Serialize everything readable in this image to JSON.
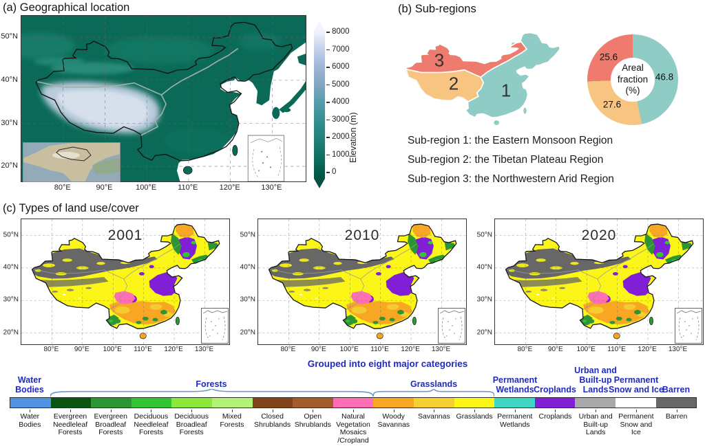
{
  "colors": {
    "header_blue": "#1f2bbd",
    "brace_blue": "#6f97c9",
    "map_outline": "#111111",
    "subregion_line_gray": "#9aa39d"
  },
  "panel_a": {
    "title": "(a) Geographical location",
    "colorbar_label": "Elevation (m)",
    "colorbar_ticks": [
      "8000",
      "7000",
      "6000",
      "5000",
      "4000",
      "3000",
      "2000",
      "1000",
      "0"
    ]
  },
  "axes": {
    "lat_labels": [
      "50°N",
      "40°N",
      "30°N",
      "20°N"
    ],
    "lon_labels": [
      "80°E",
      "90°E",
      "100°E",
      "110°E",
      "120°E",
      "130°E"
    ]
  },
  "panel_b": {
    "title": "(b) Sub-regions",
    "regions": [
      {
        "num": "1",
        "name": "Eastern Monsoon Region",
        "color": "#8fccc5"
      },
      {
        "num": "2",
        "name": "Tibetan Plateau Region",
        "color": "#f8c481"
      },
      {
        "num": "3",
        "name": "Northwestern Arid Region",
        "color": "#ee7b6e"
      }
    ],
    "donut": {
      "center_label": "Areal\nfraction\n(%)",
      "slices": [
        {
          "label": "46.8",
          "value": 46.8,
          "color": "#8fccc5"
        },
        {
          "label": "27.6",
          "value": 27.6,
          "color": "#f8c481"
        },
        {
          "label": "25.6",
          "value": 25.6,
          "color": "#ee7b6e"
        }
      ]
    },
    "subregion_lines": [
      "Sub-region 1: the Eastern Monsoon Region",
      "Sub-region 2: the Tibetan Plateau Region",
      "Sub-region 3: the Northwestern Arid Region"
    ]
  },
  "panel_c": {
    "title": "(c) Types of land use/cover",
    "years": [
      "2001",
      "2010",
      "2020"
    ]
  },
  "legend": {
    "caption": "Grouped into eight major categories",
    "groups": [
      {
        "label": "Water Bodies"
      },
      {
        "label": "Forests"
      },
      {
        "label": "Grasslands"
      },
      {
        "label": "Permanent Wetlands"
      },
      {
        "label": "Croplands"
      },
      {
        "label": "Urban and Built-up Lands"
      },
      {
        "label": "Permanent Snow and Ice"
      },
      {
        "label": "Barren"
      }
    ],
    "items": [
      {
        "label": "Water Bodies",
        "color": "#4f93e0"
      },
      {
        "label": "Evergreen Needleleaf Forests",
        "color": "#0a5310"
      },
      {
        "label": "Evergreen Broadleaf Forests",
        "color": "#2d9634"
      },
      {
        "label": "Deciduous Needleleaf Forests",
        "color": "#33c433"
      },
      {
        "label": "Deciduous Broadleaf Forests",
        "color": "#8ee83b"
      },
      {
        "label": "Mixed Forests",
        "color": "#b4f277"
      },
      {
        "label": "Closed Shrublands",
        "color": "#83431a"
      },
      {
        "label": "Open Shrublands",
        "color": "#a65b2d"
      },
      {
        "label": "Natural Vegetation Mosaics /Cropland",
        "color": "#ff6eb5"
      },
      {
        "label": "Woody Savannas",
        "color": "#f7a723"
      },
      {
        "label": "Savannas",
        "color": "#f5d031"
      },
      {
        "label": "Grasslands",
        "color": "#fbf617"
      },
      {
        "label": "Permanent Wetlands",
        "color": "#3fd6c6"
      },
      {
        "label": "Croplands",
        "color": "#811fd6"
      },
      {
        "label": "Urban and Built-up Lands",
        "color": "#a9a9a9"
      },
      {
        "label": "Permanent Snow and Ice",
        "color": "#ffffff"
      },
      {
        "label": "Barren",
        "color": "#676767"
      }
    ]
  },
  "chart_data": {
    "type": "pie",
    "title": "Areal fraction (%)",
    "labels": [
      "Sub-region 1: the Eastern Monsoon Region",
      "Sub-region 2: the Tibetan Plateau Region",
      "Sub-region 3: the Northwestern Arid Region"
    ],
    "values": [
      46.8,
      27.6,
      25.6
    ],
    "colors": [
      "#8fccc5",
      "#f8c481",
      "#ee7b6e"
    ],
    "legend_position": "none",
    "donut": true
  }
}
